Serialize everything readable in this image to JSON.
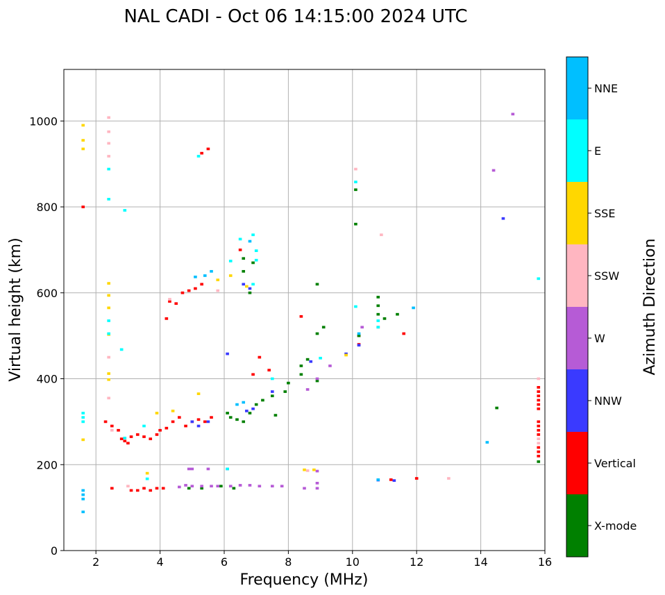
{
  "chart_data": {
    "type": "scatter",
    "title": "NAL CADI - Oct 06 14:15:00 2024 UTC",
    "xlabel": "Frequency (MHz)",
    "ylabel": "Virtual height (km)",
    "xlim": [
      1,
      16
    ],
    "ylim": [
      0,
      1120
    ],
    "xticks": [
      2,
      4,
      6,
      8,
      10,
      12,
      14,
      16
    ],
    "yticks": [
      0,
      200,
      400,
      600,
      800,
      1000
    ],
    "grid": true,
    "colorbar": {
      "title": "Azimuth Direction",
      "categories": [
        "X-mode",
        "Vertical",
        "NNW",
        "W",
        "SSW",
        "SSE",
        "E",
        "NNE"
      ],
      "colors": {
        "X-mode": "#008000",
        "Vertical": "#ff0000",
        "NNW": "#3a3aff",
        "W": "#b65bd6",
        "SSW": "#ffb6c1",
        "SSE": "#ffd700",
        "E": "#00ffff",
        "NNE": "#00bfff"
      }
    },
    "series": [
      {
        "name": "Vertical",
        "points": [
          [
            2.3,
            300
          ],
          [
            2.5,
            290
          ],
          [
            2.7,
            280
          ],
          [
            2.8,
            260
          ],
          [
            2.9,
            255
          ],
          [
            3.0,
            250
          ],
          [
            3.1,
            265
          ],
          [
            3.3,
            270
          ],
          [
            3.5,
            265
          ],
          [
            3.7,
            260
          ],
          [
            3.9,
            270
          ],
          [
            4.0,
            280
          ],
          [
            4.2,
            285
          ],
          [
            4.4,
            300
          ],
          [
            4.6,
            310
          ],
          [
            4.8,
            290
          ],
          [
            5.0,
            300
          ],
          [
            5.2,
            305
          ],
          [
            5.4,
            300
          ],
          [
            5.6,
            310
          ],
          [
            3.1,
            140
          ],
          [
            3.3,
            140
          ],
          [
            3.5,
            145
          ],
          [
            3.7,
            140
          ],
          [
            3.9,
            145
          ],
          [
            4.1,
            145
          ],
          [
            2.5,
            145
          ],
          [
            4.2,
            540
          ],
          [
            4.3,
            580
          ],
          [
            4.5,
            575
          ],
          [
            4.7,
            600
          ],
          [
            4.9,
            605
          ],
          [
            5.1,
            610
          ],
          [
            5.3,
            620
          ],
          [
            5.5,
            935
          ],
          [
            5.3,
            925
          ],
          [
            8.4,
            545
          ],
          [
            10.2,
            480
          ],
          [
            10.2,
            500
          ],
          [
            10.8,
            520
          ],
          [
            11.6,
            505
          ],
          [
            11.2,
            165
          ],
          [
            12.0,
            168
          ],
          [
            6.9,
            410
          ],
          [
            7.1,
            450
          ],
          [
            7.4,
            420
          ],
          [
            6.5,
            700
          ],
          [
            1.6,
            800
          ],
          [
            15.8,
            380
          ],
          [
            15.8,
            370
          ],
          [
            15.8,
            360
          ],
          [
            15.8,
            350
          ],
          [
            15.8,
            340
          ],
          [
            15.8,
            330
          ],
          [
            15.8,
            300
          ],
          [
            15.8,
            290
          ],
          [
            15.8,
            280
          ],
          [
            15.8,
            270
          ],
          [
            15.8,
            240
          ],
          [
            15.8,
            230
          ],
          [
            15.8,
            220
          ]
        ]
      },
      {
        "name": "X-mode",
        "points": [
          [
            6.1,
            320
          ],
          [
            6.2,
            310
          ],
          [
            6.4,
            305
          ],
          [
            6.6,
            300
          ],
          [
            6.8,
            320
          ],
          [
            7.0,
            340
          ],
          [
            7.2,
            350
          ],
          [
            7.5,
            360
          ],
          [
            7.9,
            370
          ],
          [
            8.0,
            390
          ],
          [
            8.4,
            410
          ],
          [
            8.4,
            430
          ],
          [
            8.6,
            445
          ],
          [
            8.9,
            395
          ],
          [
            8.9,
            505
          ],
          [
            8.9,
            620
          ],
          [
            9.1,
            520
          ],
          [
            10.1,
            760
          ],
          [
            10.1,
            840
          ],
          [
            10.2,
            500
          ],
          [
            10.8,
            590
          ],
          [
            10.8,
            570
          ],
          [
            10.8,
            550
          ],
          [
            11.0,
            540
          ],
          [
            11.4,
            550
          ],
          [
            14.5,
            332
          ],
          [
            15.8,
            207
          ],
          [
            6.6,
            680
          ],
          [
            6.6,
            650
          ],
          [
            6.9,
            670
          ],
          [
            5.9,
            150
          ],
          [
            6.3,
            145
          ],
          [
            7.6,
            315
          ],
          [
            4.9,
            145
          ],
          [
            5.3,
            145
          ],
          [
            6.8,
            600
          ]
        ]
      },
      {
        "name": "NNW",
        "points": [
          [
            5.0,
            300
          ],
          [
            5.2,
            290
          ],
          [
            5.5,
            300
          ],
          [
            6.7,
            325
          ],
          [
            6.9,
            330
          ],
          [
            7.5,
            370
          ],
          [
            8.7,
            440
          ],
          [
            9.8,
            458
          ],
          [
            10.2,
            478
          ],
          [
            10.8,
            164
          ],
          [
            11.3,
            163
          ],
          [
            14.7,
            773
          ],
          [
            6.1,
            458
          ],
          [
            6.8,
            610
          ],
          [
            6.6,
            620
          ]
        ]
      },
      {
        "name": "W",
        "points": [
          [
            4.6,
            148
          ],
          [
            4.8,
            152
          ],
          [
            5.0,
            150
          ],
          [
            5.3,
            150
          ],
          [
            5.6,
            150
          ],
          [
            5.8,
            150
          ],
          [
            6.2,
            150
          ],
          [
            6.5,
            152
          ],
          [
            6.8,
            152
          ],
          [
            7.1,
            150
          ],
          [
            7.5,
            150
          ],
          [
            7.8,
            150
          ],
          [
            8.5,
            145
          ],
          [
            8.9,
            145
          ],
          [
            8.9,
            157
          ],
          [
            8.9,
            185
          ],
          [
            5.0,
            190
          ],
          [
            5.5,
            190
          ],
          [
            8.9,
            400
          ],
          [
            9.3,
            430
          ],
          [
            10.3,
            520
          ],
          [
            14.4,
            885
          ],
          [
            15.0,
            1016
          ],
          [
            8.6,
            375
          ],
          [
            4.9,
            190
          ],
          [
            6.1,
            190
          ]
        ]
      },
      {
        "name": "SSW",
        "points": [
          [
            2.4,
            1008
          ],
          [
            2.4,
            975
          ],
          [
            2.4,
            948
          ],
          [
            2.4,
            918
          ],
          [
            2.4,
            450
          ],
          [
            2.4,
            355
          ],
          [
            10.1,
            888
          ],
          [
            10.9,
            735
          ],
          [
            13.0,
            168
          ],
          [
            4.3,
            585
          ],
          [
            5.8,
            605
          ],
          [
            15.8,
            400
          ],
          [
            15.8,
            260
          ],
          [
            15.8,
            250
          ],
          [
            8.6,
            186
          ],
          [
            2.5,
            280
          ],
          [
            3.0,
            150
          ]
        ]
      },
      {
        "name": "SSE",
        "points": [
          [
            1.6,
            990
          ],
          [
            1.6,
            955
          ],
          [
            1.6,
            935
          ],
          [
            2.4,
            622
          ],
          [
            2.4,
            594
          ],
          [
            2.4,
            565
          ],
          [
            2.4,
            503
          ],
          [
            2.4,
            412
          ],
          [
            2.4,
            398
          ],
          [
            1.6,
            258
          ],
          [
            3.6,
            180
          ],
          [
            5.2,
            365
          ],
          [
            5.8,
            630
          ],
          [
            6.2,
            640
          ],
          [
            8.5,
            188
          ],
          [
            8.8,
            188
          ],
          [
            9.8,
            455
          ],
          [
            6.7,
            615
          ],
          [
            3.9,
            320
          ],
          [
            4.4,
            325
          ]
        ]
      },
      {
        "name": "E",
        "points": [
          [
            2.4,
            888
          ],
          [
            2.4,
            535
          ],
          [
            2.4,
            505
          ],
          [
            2.9,
            792
          ],
          [
            2.4,
            818
          ],
          [
            1.6,
            320
          ],
          [
            1.6,
            310
          ],
          [
            1.6,
            300
          ],
          [
            3.6,
            167
          ],
          [
            2.8,
            468
          ],
          [
            10.1,
            858
          ],
          [
            10.1,
            568
          ],
          [
            10.8,
            535
          ],
          [
            10.8,
            520
          ],
          [
            15.8,
            633
          ],
          [
            6.5,
            725
          ],
          [
            6.9,
            735
          ],
          [
            7.0,
            698
          ],
          [
            7.0,
            676
          ],
          [
            5.2,
            918
          ],
          [
            6.2,
            674
          ],
          [
            9.0,
            448
          ],
          [
            7.5,
            400
          ],
          [
            6.1,
            190
          ],
          [
            2.9,
            262
          ],
          [
            3.5,
            290
          ],
          [
            6.9,
            620
          ]
        ]
      },
      {
        "name": "NNE",
        "points": [
          [
            1.6,
            140
          ],
          [
            1.6,
            130
          ],
          [
            1.6,
            120
          ],
          [
            1.6,
            90
          ],
          [
            10.2,
            505
          ],
          [
            11.9,
            565
          ],
          [
            14.2,
            252
          ],
          [
            5.1,
            637
          ],
          [
            5.6,
            650
          ],
          [
            6.8,
            720
          ],
          [
            6.6,
            345
          ],
          [
            6.4,
            340
          ],
          [
            10.8,
            165
          ],
          [
            5.4,
            640
          ]
        ]
      }
    ]
  }
}
